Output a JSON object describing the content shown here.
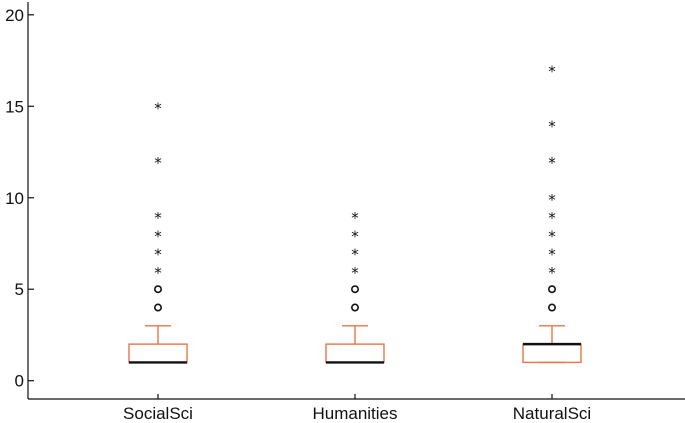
{
  "chart_data": {
    "type": "boxplot",
    "title": "",
    "xlabel": "",
    "ylabel": "",
    "categories": [
      "SocialSci",
      "Humanities",
      "NaturalSci"
    ],
    "ylim": [
      -1,
      20.7
    ],
    "yticks": [
      0,
      5,
      10,
      15,
      20
    ],
    "ytick_labels": [
      "0",
      "5",
      "10",
      "15",
      "20"
    ],
    "grid": false,
    "box_color": "#e8744a",
    "median_color": "#111111",
    "outlier_color": "#111111",
    "boxes": [
      {
        "category": "SocialSci",
        "whisker_low": 1,
        "q1": 1,
        "median": 1,
        "q3": 2,
        "whisker_high": 3,
        "outliers_circle": [
          4,
          5
        ],
        "outliers_star": [
          6,
          7,
          8,
          9,
          12,
          15
        ]
      },
      {
        "category": "Humanities",
        "whisker_low": 1,
        "q1": 1,
        "median": 1,
        "q3": 2,
        "whisker_high": 3,
        "outliers_circle": [
          4,
          5
        ],
        "outliers_star": [
          6,
          7,
          8,
          9
        ]
      },
      {
        "category": "NaturalSci",
        "whisker_low": 1,
        "q1": 1,
        "median": 2,
        "q3": 2,
        "whisker_high": 3,
        "outliers_circle": [
          4,
          5
        ],
        "outliers_star": [
          6,
          7,
          8,
          9,
          10,
          12,
          14,
          17
        ]
      }
    ]
  }
}
